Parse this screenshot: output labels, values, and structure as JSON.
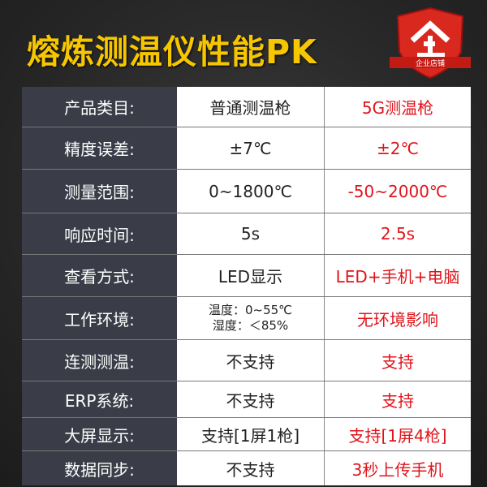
{
  "title": "熔炼测温仪性能PK",
  "badge": {
    "text": "企业店铺",
    "icon": "enterprise-shield-icon",
    "color": "#d9281e"
  },
  "colors": {
    "title": "#f6c600",
    "label_bg": "#3a3d47",
    "highlight": "#e0141b"
  },
  "rows": [
    {
      "label": "产品类目:",
      "normal": "普通测温枪",
      "fiveg": "5G测温枪"
    },
    {
      "label": "精度误差:",
      "normal": "±7℃",
      "fiveg": "±2℃"
    },
    {
      "label": "测量范围:",
      "normal": "0~1800℃",
      "fiveg": "-50~2000℃"
    },
    {
      "label": "响应时间:",
      "normal": "5s",
      "fiveg": "2.5s"
    },
    {
      "label": "查看方式:",
      "normal": "LED显示",
      "fiveg": "LED+手机+电脑"
    },
    {
      "label": "工作环境:",
      "normal_lines": [
        "温度：0~55℃",
        "湿度：＜85%"
      ],
      "fiveg": "无环境影响"
    },
    {
      "label": "连测测温:",
      "normal": "不支持",
      "fiveg": "支持"
    },
    {
      "label": "ERP系统:",
      "normal": "不支持",
      "fiveg": "支持"
    },
    {
      "label": "大屏显示:",
      "normal": "支持[1屏1枪]",
      "fiveg": "支持[1屏4枪]"
    },
    {
      "label": "数据同步:",
      "normal": "不支持",
      "fiveg": "3秒上传手机"
    }
  ]
}
